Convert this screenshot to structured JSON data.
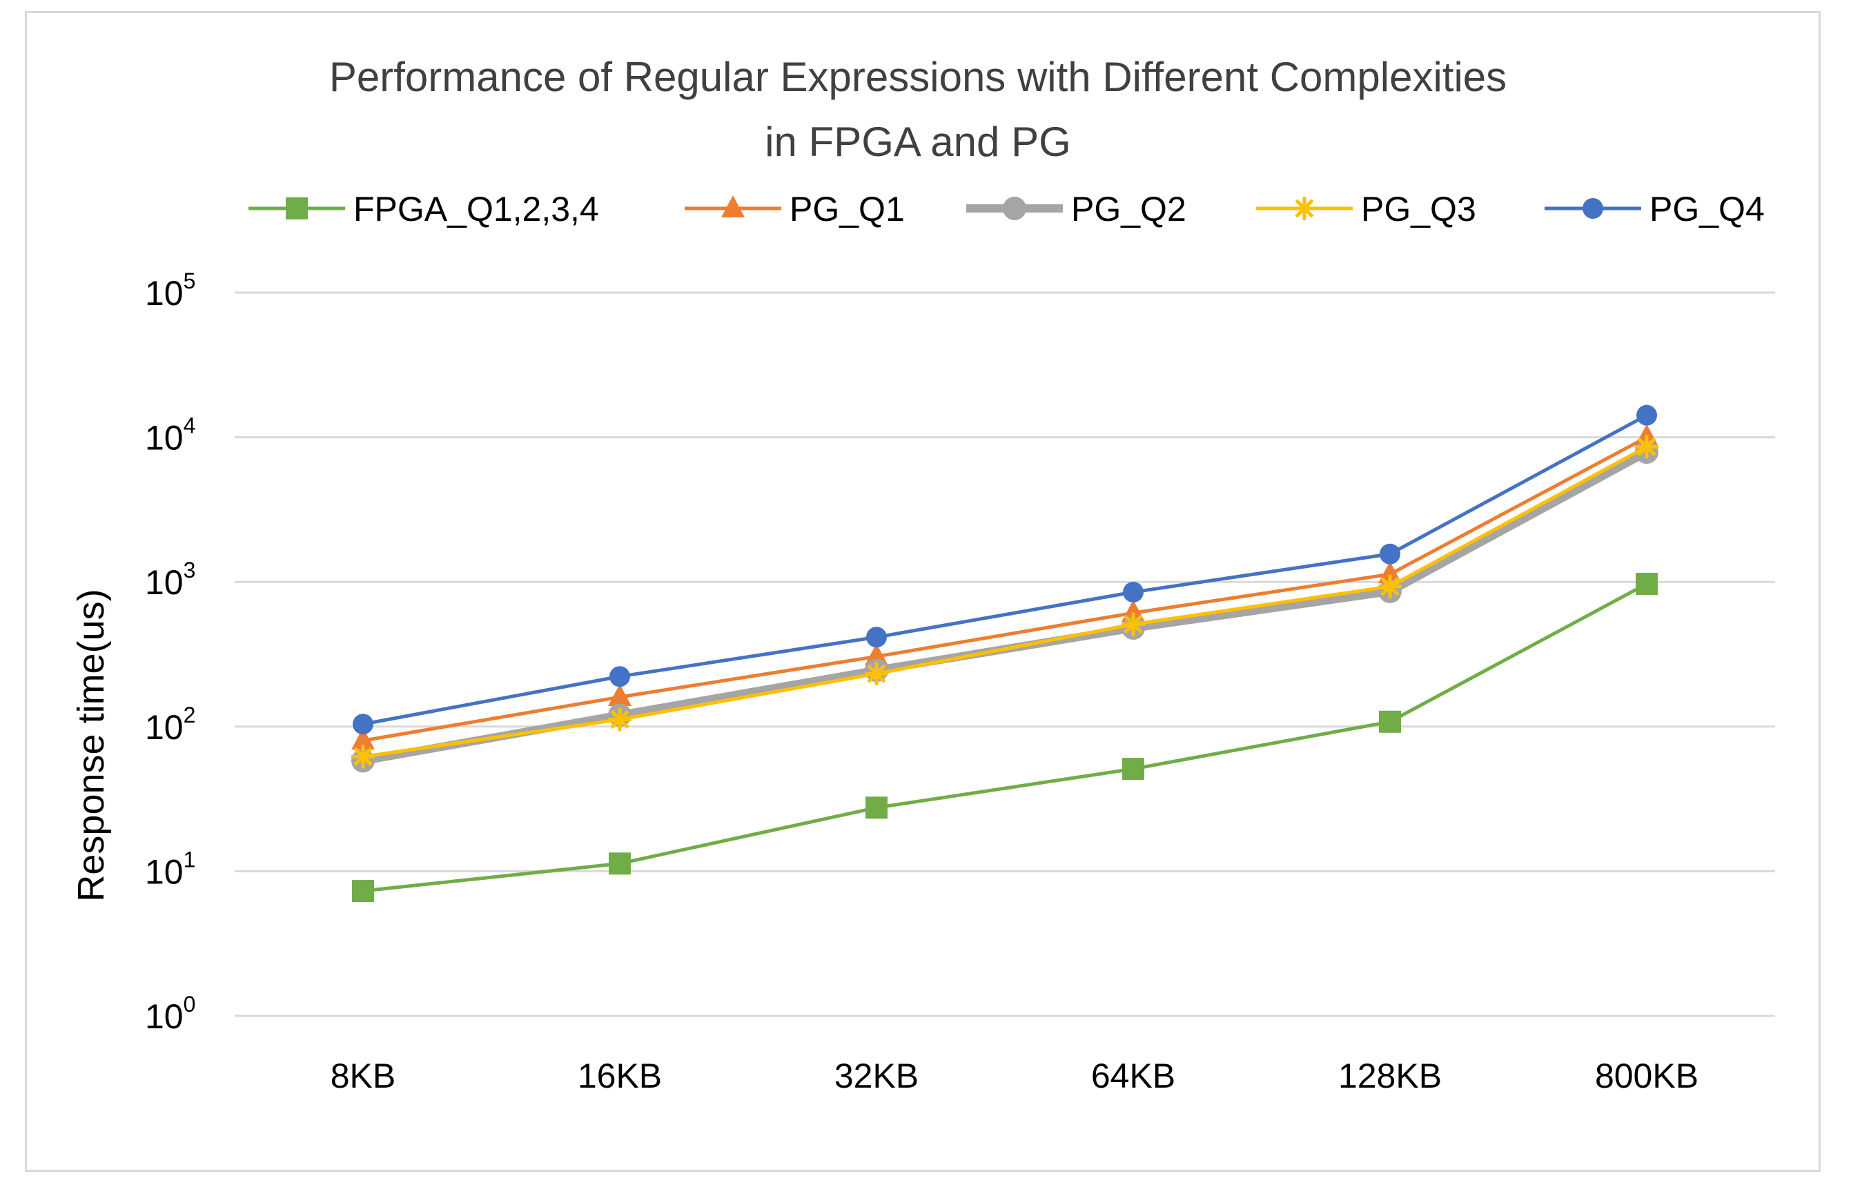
{
  "chart_data": {
    "type": "line",
    "title": [
      "Performance of Regular Expressions with Different Complexities",
      "in FPGA and PG"
    ],
    "xlabel": "",
    "ylabel": "Response time(us)",
    "yscale": "log10",
    "ylim": [
      1,
      100000
    ],
    "y_ticks": [
      {
        "base": "10",
        "exp": "0"
      },
      {
        "base": "10",
        "exp": "1"
      },
      {
        "base": "10",
        "exp": "2"
      },
      {
        "base": "10",
        "exp": "3"
      },
      {
        "base": "10",
        "exp": "4"
      },
      {
        "base": "10",
        "exp": "5"
      }
    ],
    "grid": true,
    "legend_position": "top",
    "categories": [
      "8KB",
      "16KB",
      "32KB",
      "64KB",
      "128KB",
      "800KB"
    ],
    "series": [
      {
        "name": "FPGA_Q1,2,3,4",
        "color": "#70ad47",
        "marker": "square",
        "values": [
          7.3,
          11.3,
          27.5,
          51,
          108,
          970
        ]
      },
      {
        "name": "PG_Q1",
        "color": "#ed7d31",
        "marker": "triangle",
        "values": [
          80,
          160,
          305,
          610,
          1130,
          10000
        ]
      },
      {
        "name": "PG_Q2",
        "color": "#a5a5a5",
        "marker": "circle-thick",
        "values": [
          58,
          120,
          245,
          480,
          860,
          7900
        ]
      },
      {
        "name": "PG_Q3",
        "color": "#ffc000",
        "marker": "star",
        "values": [
          62,
          112,
          232,
          510,
          930,
          8600
        ]
      },
      {
        "name": "PG_Q4",
        "color": "#4472c4",
        "marker": "circle",
        "values": [
          104,
          222,
          415,
          850,
          1560,
          14200
        ]
      }
    ]
  }
}
